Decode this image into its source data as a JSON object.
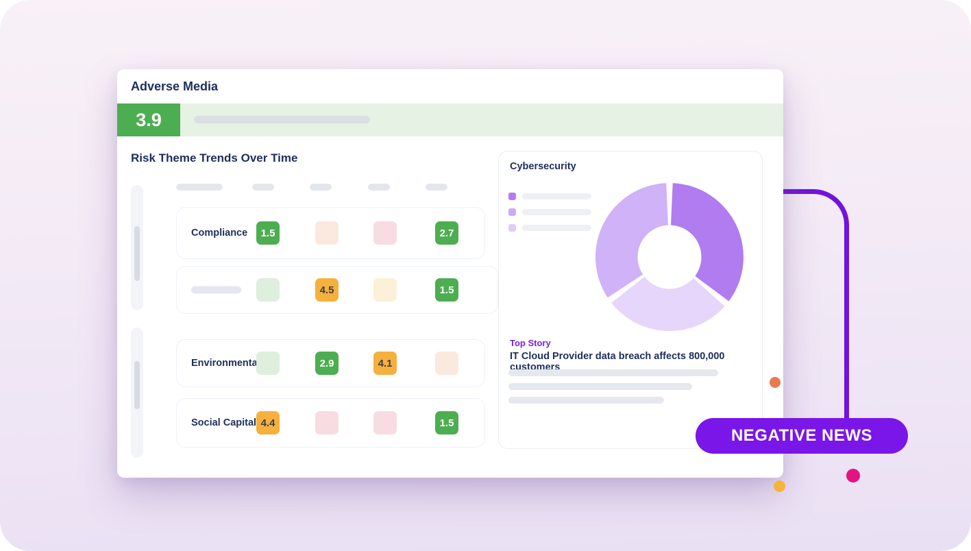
{
  "header": {
    "title": "Adverse Media",
    "score": "3.9"
  },
  "trends": {
    "title": "Risk Theme Trends Over Time",
    "rows": [
      {
        "label": "Compliance",
        "cells": [
          {
            "value": "1.5",
            "tone": "green"
          },
          {
            "value": null,
            "tone": "blank-peach"
          },
          {
            "value": null,
            "tone": "blank-pink"
          },
          {
            "value": "2.7",
            "tone": "green"
          }
        ]
      },
      {
        "label": null,
        "cells": [
          {
            "value": null,
            "tone": "blank-green"
          },
          {
            "value": "4.5",
            "tone": "orange"
          },
          {
            "value": null,
            "tone": "blank-cream"
          },
          {
            "value": "1.5",
            "tone": "green"
          }
        ]
      },
      {
        "label": "Environmental",
        "cells": [
          {
            "value": null,
            "tone": "blank-green"
          },
          {
            "value": "2.9",
            "tone": "green"
          },
          {
            "value": "4.1",
            "tone": "orange"
          },
          {
            "value": null,
            "tone": "blank-peach"
          }
        ]
      },
      {
        "label": "Social Capital",
        "cells": [
          {
            "value": "4.4",
            "tone": "orange"
          },
          {
            "value": null,
            "tone": "blank-pink"
          },
          {
            "value": null,
            "tone": "blank-pink"
          },
          {
            "value": "1.5",
            "tone": "green"
          }
        ]
      }
    ]
  },
  "panel": {
    "title": "Cybersecurity",
    "top_story_label": "Top Story",
    "headline": "IT Cloud Provider data breach affects 800,000 customers"
  },
  "news_badge": {
    "label": "NEGATIVE NEWS"
  },
  "chart_data": {
    "type": "donut",
    "title": "Cybersecurity",
    "labels_visible": false,
    "legend_position": "left",
    "segments": [
      {
        "name": "segment-dark",
        "value": 36,
        "color": "#B17CEF"
      },
      {
        "name": "segment-light",
        "value": 29,
        "color": "#E6D6FB"
      },
      {
        "name": "segment-medium",
        "value": 35,
        "color": "#CFB2F7"
      }
    ],
    "legend_colors": [
      "#B57CF2",
      "#CBA9F5",
      "#E0CCF9"
    ]
  },
  "colors": {
    "score_green": "#4CAE50",
    "score_band": "#E5F2E4",
    "chip_orange": "#F6B03C",
    "accent_purple": "#7A16E8",
    "connector_purple": "#7113DC",
    "navy_text": "#1D2E5E",
    "dot_orange": "#E87950",
    "dot_yellow": "#F6B43D",
    "dot_pink": "#E3147F"
  }
}
